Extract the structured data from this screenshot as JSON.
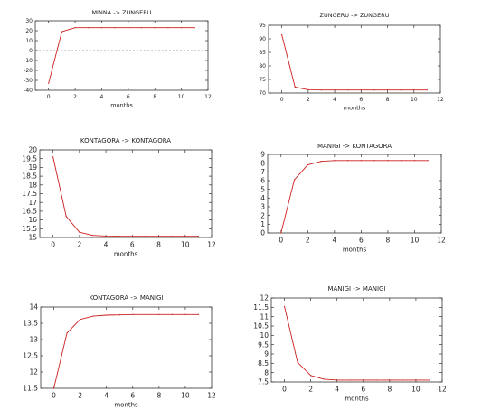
{
  "chart_data": [
    {
      "type": "line",
      "title": "MINNA -> ZUNGERU",
      "xlabel": "months",
      "ylabel": "",
      "xlim": [
        -1,
        12
      ],
      "ylim": [
        -40,
        30
      ],
      "xticks": [
        0,
        2,
        4,
        6,
        8,
        10,
        12
      ],
      "yticks": [
        30,
        20,
        10,
        0,
        -10,
        -20,
        -30,
        -40
      ],
      "zero_line": true,
      "series": [
        {
          "x": [
            0,
            1,
            2,
            3,
            4,
            5,
            6,
            7,
            8,
            9,
            10,
            11
          ],
          "values": [
            -33,
            19,
            23,
            23,
            23,
            23,
            23,
            23,
            23,
            23,
            23,
            23
          ]
        }
      ]
    },
    {
      "type": "line",
      "title": "ZUNGERU -> ZUNGERU",
      "xlabel": "months",
      "ylabel": "",
      "xlim": [
        -1,
        12
      ],
      "ylim": [
        70,
        95
      ],
      "xticks": [
        0,
        2,
        4,
        6,
        8,
        10,
        12
      ],
      "yticks": [
        95,
        90,
        85,
        80,
        75,
        70
      ],
      "zero_line": false,
      "series": [
        {
          "x": [
            0,
            1,
            2,
            3,
            4,
            5,
            6,
            7,
            8,
            9,
            10,
            11
          ],
          "values": [
            91.5,
            72.2,
            71.2,
            71.1,
            71.1,
            71.1,
            71.1,
            71.1,
            71.1,
            71.1,
            71.1,
            71.1
          ]
        }
      ]
    },
    {
      "type": "line",
      "title": "KONTAGORA -> KONTAGORA",
      "xlabel": "months",
      "ylabel": "",
      "xlim": [
        -1,
        12
      ],
      "ylim": [
        15,
        20
      ],
      "xticks": [
        0,
        2,
        4,
        6,
        8,
        10,
        12
      ],
      "yticks": [
        20,
        19.5,
        19,
        18.5,
        18,
        17.5,
        17,
        16.5,
        16,
        15.5,
        15
      ],
      "zero_line": false,
      "series": [
        {
          "x": [
            0,
            1,
            2,
            3,
            4,
            5,
            6,
            7,
            8,
            9,
            10,
            11
          ],
          "values": [
            19.6,
            16.2,
            15.3,
            15.12,
            15.08,
            15.07,
            15.07,
            15.07,
            15.07,
            15.07,
            15.07,
            15.07
          ]
        }
      ]
    },
    {
      "type": "line",
      "title": "MANIGI -> KONTAGORA",
      "xlabel": "months",
      "ylabel": "",
      "xlim": [
        -1,
        12
      ],
      "ylim": [
        0,
        9
      ],
      "xticks": [
        0,
        2,
        4,
        6,
        8,
        10,
        12
      ],
      "yticks": [
        9,
        8,
        7,
        6,
        5,
        4,
        3,
        2,
        1,
        0
      ],
      "zero_line": false,
      "series": [
        {
          "x": [
            0,
            1,
            2,
            3,
            4,
            5,
            6,
            7,
            8,
            9,
            10,
            11
          ],
          "values": [
            0,
            6.1,
            7.8,
            8.2,
            8.3,
            8.3,
            8.3,
            8.3,
            8.3,
            8.3,
            8.3,
            8.3
          ]
        }
      ]
    },
    {
      "type": "line",
      "title": "KONTAGORA -> MANIGI",
      "xlabel": "months",
      "ylabel": "",
      "xlim": [
        -1,
        12
      ],
      "ylim": [
        11.5,
        14
      ],
      "xticks": [
        0,
        2,
        4,
        6,
        8,
        10,
        12
      ],
      "yticks": [
        14,
        13.5,
        13,
        12.5,
        12,
        11.5
      ],
      "zero_line": false,
      "series": [
        {
          "x": [
            0,
            1,
            2,
            3,
            4,
            5,
            6,
            7,
            8,
            9,
            10,
            11
          ],
          "values": [
            11.5,
            13.2,
            13.62,
            13.72,
            13.75,
            13.76,
            13.77,
            13.77,
            13.77,
            13.77,
            13.77,
            13.77
          ]
        }
      ]
    },
    {
      "type": "line",
      "title": "MANIGI -> MANIGI",
      "xlabel": "months",
      "ylabel": "",
      "xlim": [
        -1,
        12
      ],
      "ylim": [
        7.5,
        12
      ],
      "xticks": [
        0,
        2,
        4,
        6,
        8,
        10,
        12
      ],
      "yticks": [
        12,
        11.5,
        11,
        10.5,
        10,
        9.5,
        9,
        8.5,
        8,
        7.5
      ],
      "zero_line": false,
      "series": [
        {
          "x": [
            0,
            1,
            2,
            3,
            4,
            5,
            6,
            7,
            8,
            9,
            10,
            11
          ],
          "values": [
            11.55,
            8.55,
            7.85,
            7.65,
            7.6,
            7.6,
            7.6,
            7.6,
            7.6,
            7.6,
            7.6,
            7.6
          ]
        }
      ]
    }
  ],
  "line_color": "#cc1f1f"
}
